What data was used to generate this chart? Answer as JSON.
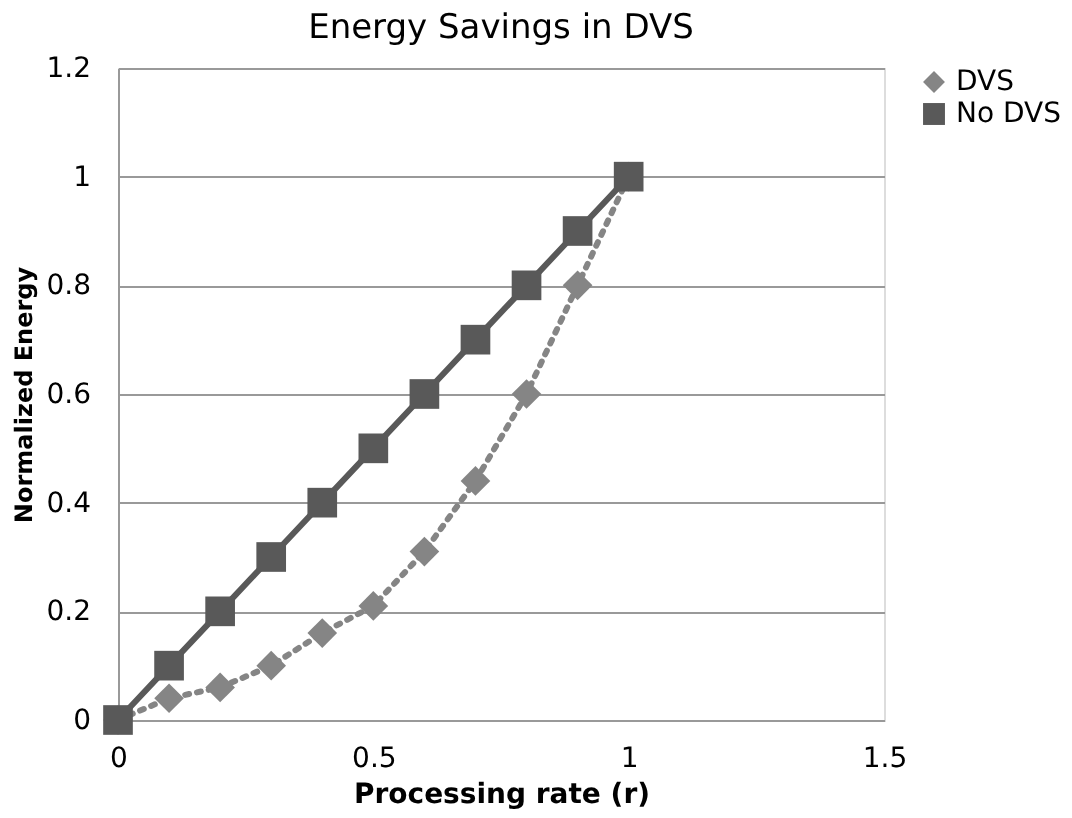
{
  "chart_data": {
    "type": "line",
    "title": "Energy Savings in DVS",
    "xlabel": "Processing rate (r)",
    "ylabel": "Normalized Energy",
    "x": [
      0,
      0.1,
      0.2,
      0.3,
      0.4,
      0.5,
      0.6,
      0.7,
      0.8,
      0.9,
      1.0
    ],
    "series": [
      {
        "name": "DVS",
        "color": "#858585",
        "marker": "diamond",
        "line_style": "dotted",
        "values": [
          0,
          0.04,
          0.06,
          0.1,
          0.16,
          0.21,
          0.31,
          0.44,
          0.6,
          0.8,
          1.0
        ]
      },
      {
        "name": "No DVS",
        "color": "#595959",
        "marker": "square",
        "line_style": "solid",
        "values": [
          0,
          0.1,
          0.2,
          0.3,
          0.4,
          0.5,
          0.6,
          0.7,
          0.8,
          0.9,
          1.0
        ]
      }
    ],
    "xlim": [
      0,
      1.5
    ],
    "xticks": [
      0,
      0.5,
      1,
      1.5
    ],
    "ylim": [
      0,
      1.2
    ],
    "yticks": [
      0,
      0.2,
      0.4,
      0.6,
      0.8,
      1,
      1.2
    ],
    "grid": "y",
    "legend": "right"
  }
}
